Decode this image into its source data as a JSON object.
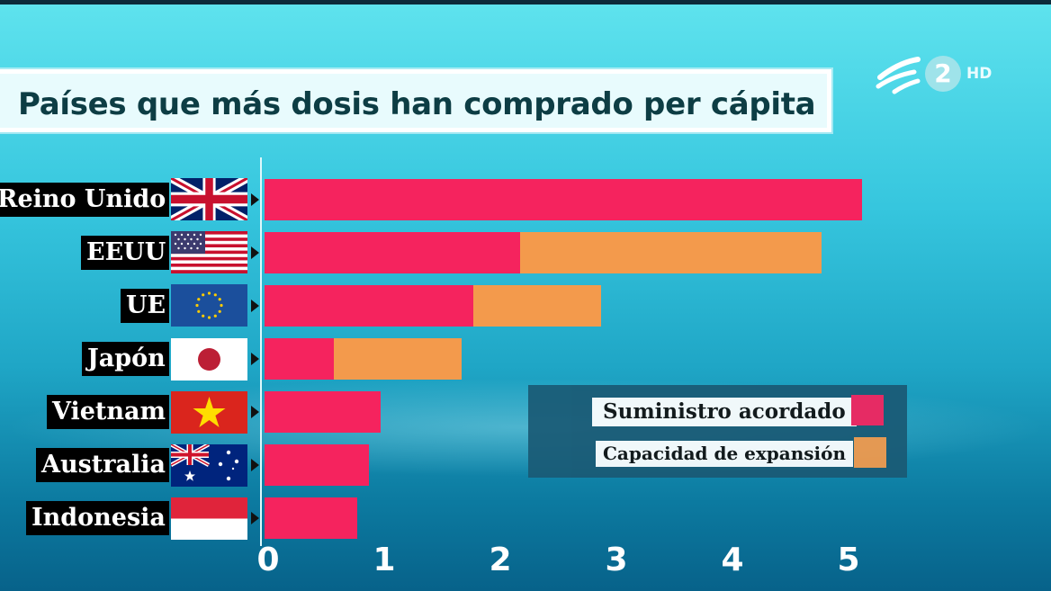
{
  "title": "Países que más dosis han comprado per cápita",
  "channel_logo": {
    "number": "2",
    "badge": "HD"
  },
  "colors": {
    "suministro": "#f5235e",
    "expansion": "#f39a4c"
  },
  "legend": {
    "suministro": "Suministro acordado",
    "expansion": "Capacidad de expansión"
  },
  "chart_data": {
    "type": "bar",
    "orientation": "horizontal",
    "stacked": true,
    "title": "Países que más dosis han comprado per cápita",
    "categories": [
      "Reino Unido",
      "EEUU",
      "UE",
      "Japón",
      "Vietnam",
      "Australia",
      "Indonesia"
    ],
    "flags": [
      "uk-flag",
      "usa-flag",
      "eu-flag",
      "japan-flag",
      "vietnam-flag",
      "australia-flag",
      "indonesia-flag"
    ],
    "series": [
      {
        "name": "Suministro acordado",
        "values": [
          5.15,
          2.2,
          1.8,
          0.6,
          1.0,
          0.9,
          0.8
        ]
      },
      {
        "name": "Capacidad de expansión",
        "values": [
          0,
          2.6,
          1.1,
          1.1,
          0,
          0,
          0
        ]
      }
    ],
    "xlim": [
      0,
      5
    ],
    "xticks": [
      "0",
      "1",
      "2",
      "3",
      "4",
      "5"
    ],
    "xlabel": "",
    "ylabel": "",
    "legend_position": "bottom-right",
    "grid": false
  }
}
